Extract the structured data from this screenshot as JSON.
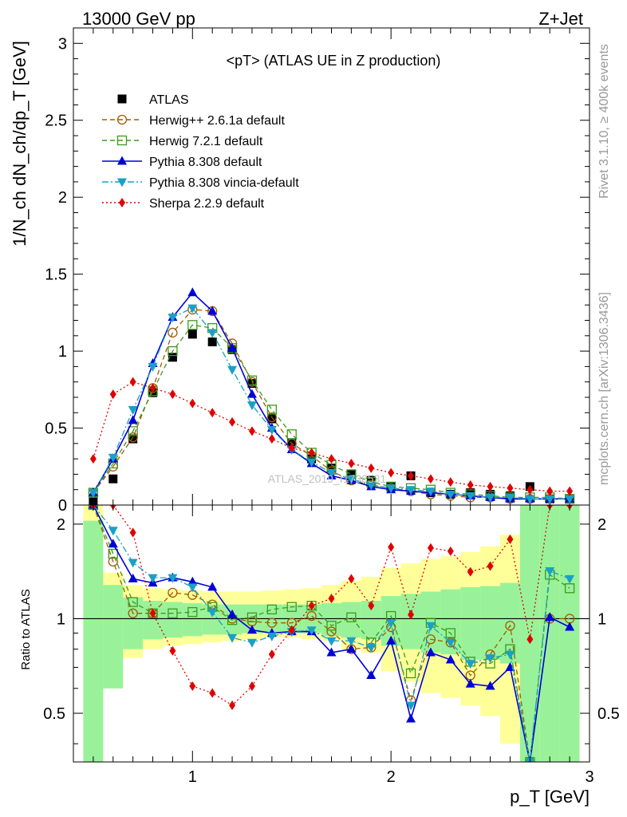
{
  "header": {
    "left": "13000 GeV pp",
    "right": "Z+Jet"
  },
  "side_labels": {
    "rivet": "Rivet 3.1.10, ≥ 400k events",
    "mcplots": "mcplots.cern.ch [arXiv:1306.3436]"
  },
  "watermark": "ATLAS_2019_I1736531",
  "colors": {
    "atlas": "#000000",
    "herwigpp": "#a35a00",
    "herwig7": "#3c9a1e",
    "pythia": "#0000d8",
    "vincia": "#1aa0c8",
    "sherpa": "#e00000",
    "band_inner": "#99f299",
    "band_outer": "#ffff99"
  },
  "chart_data": [
    {
      "type": "line",
      "title": "<pT> (ATLAS UE in Z production)",
      "xlabel": "",
      "ylabel": "1/N_ch dN_ch/dp_T [GeV]",
      "ylim": [
        0,
        3.1
      ],
      "xlim": [
        0.4,
        3.0
      ],
      "log_x": false,
      "yticks": [
        "0",
        "0.5",
        "1",
        "1.5",
        "2",
        "2.5",
        "3"
      ],
      "x": [
        0.5,
        0.6,
        0.7,
        0.8,
        0.9,
        1.0,
        1.1,
        1.2,
        1.3,
        1.4,
        1.5,
        1.6,
        1.7,
        1.8,
        1.9,
        2.0,
        2.1,
        2.2,
        2.3,
        2.4,
        2.5,
        2.6,
        2.7,
        2.8,
        2.9
      ],
      "legend_position": "top-left",
      "series": [
        {
          "name": "ATLAS",
          "key": "atlas",
          "marker": "square-filled",
          "line": "none",
          "values": [
            0.02,
            0.17,
            0.43,
            0.73,
            0.96,
            1.11,
            1.06,
            1.01,
            0.79,
            0.56,
            0.4,
            0.3,
            0.24,
            0.2,
            0.16,
            0.12,
            0.19,
            0.08,
            0.07,
            0.08,
            0.07,
            0.06,
            0.12,
            0.04,
            0.04
          ]
        },
        {
          "name": "Herwig++ 2.6.1a default",
          "key": "herwigpp",
          "marker": "circle-open",
          "line": "dashed",
          "values": [
            0.08,
            0.25,
            0.44,
            0.76,
            1.12,
            1.27,
            1.26,
            1.05,
            0.8,
            0.57,
            0.4,
            0.32,
            0.22,
            0.16,
            0.13,
            0.11,
            0.09,
            0.07,
            0.06,
            0.05,
            0.05,
            0.04,
            0.04,
            0.04,
            0.04
          ]
        },
        {
          "name": "Herwig 7.2.1 default",
          "key": "herwig7",
          "marker": "square-open",
          "line": "dashed",
          "values": [
            0.08,
            0.27,
            0.48,
            0.74,
            1.0,
            1.17,
            1.15,
            1.02,
            0.81,
            0.62,
            0.46,
            0.34,
            0.26,
            0.2,
            0.15,
            0.12,
            0.11,
            0.1,
            0.08,
            0.07,
            0.06,
            0.05,
            0.05,
            0.05,
            0.04
          ]
        },
        {
          "name": "Pythia 8.308 default",
          "key": "pythia",
          "marker": "triangle-up",
          "line": "solid",
          "values": [
            0.08,
            0.3,
            0.55,
            0.92,
            1.22,
            1.38,
            1.26,
            1.02,
            0.72,
            0.5,
            0.36,
            0.27,
            0.19,
            0.16,
            0.12,
            0.1,
            0.09,
            0.08,
            0.07,
            0.06,
            0.05,
            0.04,
            0.04,
            0.04,
            0.04
          ]
        },
        {
          "name": "Pythia 8.308 vincia-default",
          "key": "vincia",
          "marker": "triangle-down",
          "line": "dashdot",
          "values": [
            0.08,
            0.31,
            0.62,
            0.9,
            1.22,
            1.28,
            1.12,
            0.88,
            0.65,
            0.49,
            0.36,
            0.28,
            0.21,
            0.17,
            0.13,
            0.11,
            0.1,
            0.09,
            0.07,
            0.06,
            0.05,
            0.05,
            0.04,
            0.04,
            0.04
          ]
        },
        {
          "name": "Sherpa 2.2.9 default",
          "key": "sherpa",
          "marker": "diamond",
          "line": "dotted",
          "values": [
            0.3,
            0.72,
            0.8,
            0.76,
            0.72,
            0.66,
            0.6,
            0.54,
            0.48,
            0.43,
            0.37,
            0.34,
            0.3,
            0.27,
            0.24,
            0.21,
            0.19,
            0.17,
            0.15,
            0.13,
            0.12,
            0.11,
            0.1,
            0.09,
            0.09
          ]
        }
      ]
    },
    {
      "type": "line",
      "title": "",
      "xlabel": "p_T [GeV]",
      "ylabel": "Ratio to ATLAS",
      "ylim": [
        0.35,
        2.3
      ],
      "xlim": [
        0.4,
        3.0
      ],
      "log_y": true,
      "xticks": [
        "1",
        "2",
        "3"
      ],
      "yticks": [
        "0.5",
        "1",
        "2"
      ],
      "x": [
        0.5,
        0.6,
        0.7,
        0.8,
        0.9,
        1.0,
        1.1,
        1.2,
        1.3,
        1.4,
        1.5,
        1.6,
        1.7,
        1.8,
        1.9,
        2.0,
        2.1,
        2.2,
        2.3,
        2.4,
        2.5,
        2.6,
        2.7,
        2.8,
        2.9
      ],
      "band_inner_low": [
        0.3,
        0.6,
        0.8,
        0.86,
        0.87,
        0.88,
        0.89,
        0.89,
        0.9,
        0.9,
        0.9,
        0.9,
        0.88,
        0.87,
        0.86,
        0.82,
        0.8,
        0.78,
        0.77,
        0.74,
        0.74,
        0.72,
        0.3,
        0.3,
        0.3
      ],
      "band_inner_high": [
        2.05,
        1.28,
        1.17,
        1.14,
        1.13,
        1.12,
        1.11,
        1.11,
        1.11,
        1.11,
        1.11,
        1.11,
        1.12,
        1.13,
        1.14,
        1.18,
        1.2,
        1.22,
        1.24,
        1.26,
        1.27,
        1.3,
        2.5,
        2.5,
        2.5
      ],
      "band_outer_low": [
        0.3,
        0.6,
        0.75,
        0.8,
        0.82,
        0.83,
        0.84,
        0.85,
        0.86,
        0.87,
        0.87,
        0.86,
        0.85,
        0.8,
        0.78,
        0.68,
        0.63,
        0.58,
        0.56,
        0.53,
        0.49,
        0.4,
        0.3,
        0.3,
        0.3
      ],
      "band_outer_high": [
        2.35,
        1.4,
        1.28,
        1.25,
        1.24,
        1.23,
        1.22,
        1.22,
        1.22,
        1.23,
        1.24,
        1.25,
        1.28,
        1.32,
        1.36,
        1.45,
        1.5,
        1.55,
        1.58,
        1.63,
        1.7,
        1.85,
        2.5,
        2.5,
        2.5
      ],
      "series": [
        {
          "name": "Herwig++ 2.6.1a default",
          "key": "herwigpp",
          "marker": "circle-open",
          "line": "dashed",
          "values": [
            2.4,
            1.52,
            1.04,
            1.04,
            1.21,
            1.19,
            1.11,
            1.0,
            0.98,
            0.97,
            0.97,
            1.02,
            0.91,
            0.8,
            0.81,
            0.94,
            0.55,
            0.86,
            0.84,
            0.66,
            0.77,
            0.95,
            0.3,
            1.0,
            1.0
          ]
        },
        {
          "name": "Herwig 7.2.1 default",
          "key": "herwig7",
          "marker": "square-open",
          "line": "dashed",
          "values": [
            2.4,
            1.61,
            1.13,
            1.04,
            1.04,
            1.05,
            1.09,
            0.99,
            1.01,
            1.07,
            1.09,
            1.1,
            0.95,
            1.01,
            0.84,
            1.02,
            0.67,
            0.97,
            0.9,
            0.73,
            0.72,
            0.8,
            0.3,
            1.38,
            1.25
          ]
        },
        {
          "name": "Pythia 8.308 default",
          "key": "pythia",
          "marker": "triangle-up",
          "line": "solid",
          "values": [
            2.4,
            1.73,
            1.34,
            1.3,
            1.35,
            1.31,
            1.26,
            1.03,
            0.92,
            0.9,
            0.91,
            0.91,
            0.78,
            0.8,
            0.66,
            0.85,
            0.48,
            0.78,
            0.74,
            0.62,
            0.61,
            0.7,
            0.3,
            1.01,
            0.94
          ]
        },
        {
          "name": "Pythia 8.308 vincia-default",
          "key": "vincia",
          "marker": "triangle-down",
          "line": "dashdot",
          "values": [
            2.4,
            1.91,
            1.51,
            1.35,
            1.35,
            1.26,
            1.05,
            0.87,
            0.84,
            0.88,
            0.91,
            0.92,
            0.85,
            0.85,
            0.81,
            0.97,
            0.53,
            0.95,
            0.84,
            0.72,
            0.75,
            0.77,
            0.3,
            1.42,
            1.34
          ]
        },
        {
          "name": "Sherpa 2.2.9 default",
          "key": "sherpa",
          "marker": "diamond",
          "line": "dotted",
          "values": [
            2.4,
            2.4,
            1.88,
            1.04,
            0.79,
            0.61,
            0.58,
            0.53,
            0.61,
            0.77,
            0.92,
            1.1,
            1.16,
            1.34,
            1.1,
            1.69,
            1.03,
            1.68,
            1.64,
            1.41,
            1.47,
            1.79,
            0.86,
            2.4,
            2.4
          ]
        }
      ]
    }
  ]
}
